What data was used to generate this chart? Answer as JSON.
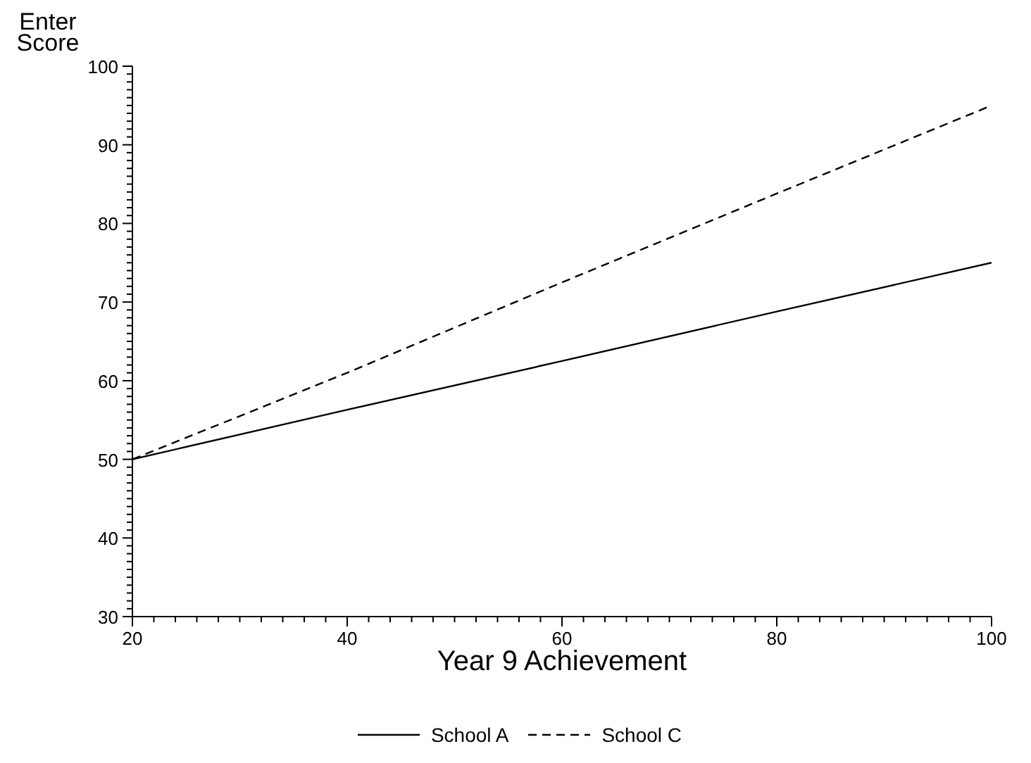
{
  "chart_data": {
    "type": "line",
    "ylabel": "Enter Score",
    "xlabel": "Year 9 Achievement",
    "x": [
      20,
      40,
      60,
      80,
      100
    ],
    "series": [
      {
        "name": "School A",
        "color": "#000000",
        "line_style": "solid",
        "values": [
          50,
          56.3,
          62.5,
          68.8,
          75
        ]
      },
      {
        "name": "School C",
        "color": "#000000",
        "line_style": "dashed",
        "values": [
          50,
          61,
          72.5,
          83.8,
          95
        ]
      }
    ],
    "xlim": [
      20,
      100
    ],
    "ylim": [
      30,
      100
    ],
    "xticks": [
      20,
      {
        "value": 22,
        "label": null
      },
      {
        "value": 24,
        "label": null
      },
      {
        "value": 26,
        "label": null
      },
      {
        "value": 28,
        "label": null
      },
      {
        "value": 30,
        "label": null
      },
      {
        "value": 32,
        "label": null
      },
      {
        "value": 34,
        "label": null
      },
      {
        "value": 36,
        "label": null
      },
      {
        "value": 38,
        "label": null
      },
      40,
      {
        "value": 42,
        "label": null
      },
      {
        "value": 44,
        "label": null
      },
      {
        "value": 46,
        "label": null
      },
      {
        "value": 48,
        "label": null
      },
      {
        "value": 50,
        "label": null
      },
      {
        "value": 52,
        "label": null
      },
      {
        "value": 54,
        "label": null
      },
      {
        "value": 56,
        "label": null
      },
      {
        "value": 58,
        "label": null
      },
      60,
      {
        "value": 62,
        "label": null
      },
      {
        "value": 64,
        "label": null
      },
      {
        "value": 66,
        "label": null
      },
      {
        "value": 68,
        "label": null
      },
      {
        "value": 70,
        "label": null
      },
      {
        "value": 72,
        "label": null
      },
      {
        "value": 74,
        "label": null
      },
      {
        "value": 76,
        "label": null
      },
      {
        "value": 78,
        "label": null
      },
      80,
      {
        "value": 82,
        "label": null
      },
      {
        "value": 84,
        "label": null
      },
      {
        "value": 86,
        "label": null
      },
      {
        "value": 88,
        "label": null
      },
      {
        "value": 90,
        "label": null
      },
      {
        "value": 92,
        "label": null
      },
      {
        "value": 94,
        "label": null
      },
      {
        "value": 96,
        "label": null
      },
      {
        "value": 98,
        "label": null
      },
      100
    ],
    "yticks": [
      30,
      {
        "value": 31,
        "label": null
      },
      {
        "value": 32,
        "label": null
      },
      {
        "value": 33,
        "label": null
      },
      {
        "value": 34,
        "label": null
      },
      {
        "value": 35,
        "label": null
      },
      {
        "value": 36,
        "label": null
      },
      {
        "value": 37,
        "label": null
      },
      {
        "value": 38,
        "label": null
      },
      {
        "value": 39,
        "label": null
      },
      40,
      {
        "value": 41,
        "label": null
      },
      {
        "value": 42,
        "label": null
      },
      {
        "value": 43,
        "label": null
      },
      {
        "value": 44,
        "label": null
      },
      {
        "value": 45,
        "label": null
      },
      {
        "value": 46,
        "label": null
      },
      {
        "value": 47,
        "label": null
      },
      {
        "value": 48,
        "label": null
      },
      {
        "value": 49,
        "label": null
      },
      50,
      {
        "value": 51,
        "label": null
      },
      {
        "value": 52,
        "label": null
      },
      {
        "value": 53,
        "label": null
      },
      {
        "value": 54,
        "label": null
      },
      {
        "value": 55,
        "label": null
      },
      {
        "value": 56,
        "label": null
      },
      {
        "value": 57,
        "label": null
      },
      {
        "value": 58,
        "label": null
      },
      {
        "value": 59,
        "label": null
      },
      60,
      {
        "value": 61,
        "label": null
      },
      {
        "value": 62,
        "label": null
      },
      {
        "value": 63,
        "label": null
      },
      {
        "value": 64,
        "label": null
      },
      {
        "value": 65,
        "label": null
      },
      {
        "value": 66,
        "label": null
      },
      {
        "value": 67,
        "label": null
      },
      {
        "value": 68,
        "label": null
      },
      {
        "value": 69,
        "label": null
      },
      70,
      {
        "value": 71,
        "label": null
      },
      {
        "value": 72,
        "label": null
      },
      {
        "value": 73,
        "label": null
      },
      {
        "value": 74,
        "label": null
      },
      {
        "value": 75,
        "label": null
      },
      {
        "value": 76,
        "label": null
      },
      {
        "value": 77,
        "label": null
      },
      {
        "value": 78,
        "label": null
      },
      {
        "value": 79,
        "label": null
      },
      80,
      {
        "value": 81,
        "label": null
      },
      {
        "value": 82,
        "label": null
      },
      {
        "value": 83,
        "label": null
      },
      {
        "value": 84,
        "label": null
      },
      {
        "value": 85,
        "label": null
      },
      {
        "value": 86,
        "label": null
      },
      {
        "value": 87,
        "label": null
      },
      {
        "value": 88,
        "label": null
      },
      {
        "value": 89,
        "label": null
      },
      90,
      {
        "value": 91,
        "label": null
      },
      {
        "value": 92,
        "label": null
      },
      {
        "value": 93,
        "label": null
      },
      {
        "value": 94,
        "label": null
      },
      {
        "value": 95,
        "label": null
      },
      {
        "value": 96,
        "label": null
      },
      {
        "value": 97,
        "label": null
      },
      {
        "value": 98,
        "label": null
      },
      {
        "value": 99,
        "label": null
      },
      100
    ],
    "grid": false,
    "legend": "bottom",
    "marker": "none"
  }
}
